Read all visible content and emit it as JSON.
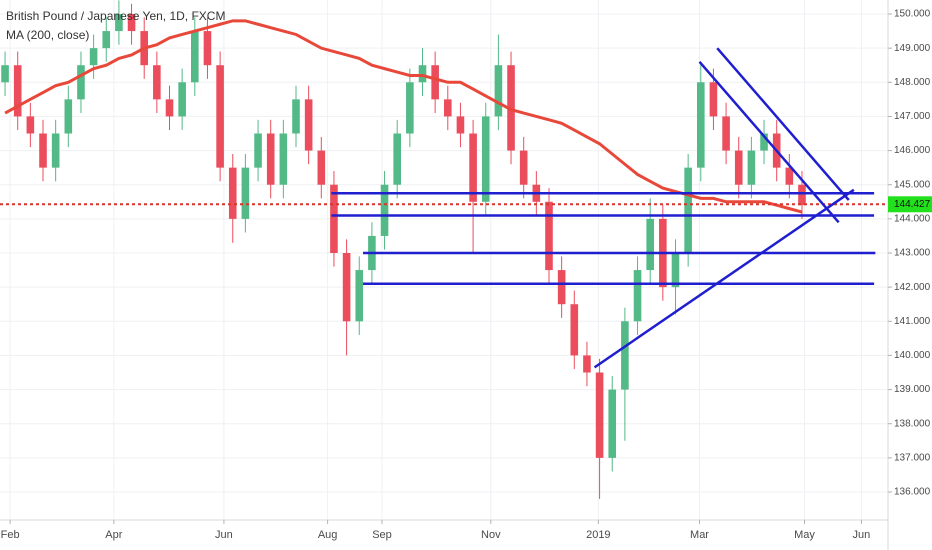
{
  "chart_data": {
    "type": "candlestick",
    "title": "British Pound / Japanese Yen, 1D, FXCM",
    "categories": [
      null,
      null,
      null,
      null,
      null,
      null,
      null,
      null,
      null,
      null,
      null,
      null,
      null,
      null,
      null,
      null,
      null,
      null,
      null,
      null,
      null,
      null,
      null,
      null,
      null,
      null,
      null,
      null,
      null,
      null,
      null,
      null,
      null,
      null,
      null,
      null,
      null,
      null,
      null,
      null,
      null,
      null,
      null,
      null,
      null,
      null,
      null,
      null,
      null,
      null,
      null,
      null,
      null,
      null,
      null,
      null,
      null,
      null,
      null,
      null,
      null,
      null,
      null,
      null
    ],
    "open": [
      148.0,
      148.5,
      147.0,
      146.5,
      145.5,
      146.5,
      147.5,
      148.5,
      149.0,
      149.5,
      150.0,
      149.5,
      148.5,
      147.5,
      147.0,
      148.0,
      149.5,
      148.5,
      145.5,
      144.0,
      145.5,
      146.5,
      145.0,
      146.5,
      147.5,
      146.0,
      145.0,
      143.0,
      141.0,
      142.5,
      143.5,
      145.0,
      146.5,
      148.0,
      148.5,
      147.5,
      147.0,
      146.5,
      144.5,
      147.0,
      148.5,
      146.0,
      145.0,
      144.5,
      142.5,
      141.5,
      140.0,
      139.5,
      137.0,
      139.0,
      141.0,
      142.5,
      144.0,
      142.0,
      143.0,
      145.5,
      148.0,
      147.0,
      146.0,
      145.0,
      146.0,
      146.5,
      145.5,
      145.0
    ],
    "high": [
      148.9,
      148.9,
      147.4,
      146.9,
      146.9,
      147.9,
      148.9,
      149.4,
      149.9,
      150.4,
      150.3,
      149.9,
      148.9,
      147.9,
      148.4,
      149.9,
      149.9,
      148.9,
      145.9,
      145.9,
      146.9,
      146.9,
      146.9,
      147.9,
      147.9,
      146.4,
      145.4,
      143.4,
      142.9,
      143.9,
      145.4,
      146.9,
      148.4,
      149.0,
      148.9,
      147.9,
      147.4,
      146.9,
      147.4,
      149.4,
      148.9,
      146.4,
      145.4,
      144.9,
      142.9,
      141.9,
      140.4,
      139.9,
      139.4,
      141.4,
      142.9,
      144.6,
      144.4,
      143.4,
      145.9,
      148.5,
      148.4,
      147.4,
      146.4,
      146.4,
      146.9,
      146.9,
      145.9,
      145.4
    ],
    "low": [
      147.6,
      146.6,
      146.1,
      145.1,
      145.1,
      146.1,
      147.1,
      148.1,
      148.6,
      149.1,
      149.1,
      148.1,
      147.1,
      146.6,
      146.6,
      147.6,
      148.1,
      145.1,
      143.3,
      143.6,
      145.1,
      144.6,
      144.6,
      146.1,
      145.6,
      144.6,
      142.6,
      140.0,
      140.6,
      142.1,
      143.1,
      144.6,
      146.1,
      147.6,
      147.1,
      146.6,
      146.1,
      143.0,
      144.1,
      146.6,
      145.6,
      144.6,
      144.1,
      142.1,
      141.1,
      139.6,
      139.1,
      135.8,
      136.6,
      137.5,
      140.6,
      142.1,
      141.6,
      141.2,
      142.6,
      145.1,
      146.6,
      145.6,
      144.6,
      144.6,
      145.6,
      145.1,
      144.6,
      144.0
    ],
    "close": [
      148.5,
      147.0,
      146.5,
      145.5,
      146.5,
      147.5,
      148.5,
      149.0,
      149.5,
      150.0,
      149.5,
      148.5,
      147.5,
      147.0,
      148.0,
      149.5,
      148.5,
      145.5,
      144.0,
      145.5,
      146.5,
      145.0,
      146.5,
      147.5,
      146.0,
      145.0,
      143.0,
      141.0,
      142.5,
      143.5,
      145.0,
      146.5,
      148.0,
      148.5,
      147.5,
      147.0,
      146.5,
      144.5,
      147.0,
      148.5,
      146.0,
      145.0,
      144.5,
      142.5,
      141.5,
      140.0,
      139.5,
      137.0,
      139.0,
      141.0,
      142.5,
      144.0,
      142.0,
      143.0,
      145.5,
      148.0,
      147.0,
      146.0,
      145.0,
      146.0,
      146.5,
      145.5,
      145.0,
      144.4
    ],
    "up_color": "#53b987",
    "down_color": "#eb4d5c",
    "series": [
      {
        "name": "MA (200, close)",
        "color": "#e8483a",
        "values": [
          147.1,
          147.3,
          147.5,
          147.7,
          147.9,
          148.0,
          148.2,
          148.4,
          148.5,
          148.7,
          148.8,
          149.0,
          149.1,
          149.3,
          149.4,
          149.5,
          149.6,
          149.7,
          149.8,
          149.8,
          149.7,
          149.6,
          149.5,
          149.4,
          149.2,
          149.0,
          148.9,
          148.8,
          148.7,
          148.5,
          148.4,
          148.3,
          148.2,
          148.2,
          148.1,
          148.0,
          148.0,
          147.8,
          147.6,
          147.4,
          147.2,
          147.1,
          147.0,
          146.9,
          146.8,
          146.6,
          146.4,
          146.2,
          145.9,
          145.6,
          145.3,
          145.1,
          144.9,
          144.8,
          144.7,
          144.6,
          144.6,
          144.5,
          144.5,
          144.5,
          144.5,
          144.4,
          144.3,
          144.2
        ]
      }
    ],
    "lines": [
      {
        "x": [
          25.8,
          68.7
        ],
        "y": [
          144.75,
          144.75
        ]
      },
      {
        "x": [
          25.8,
          68.7
        ],
        "y": [
          144.1,
          144.1
        ]
      },
      {
        "x": [
          28.3,
          68.8
        ],
        "y": [
          143.0,
          143.0
        ]
      },
      {
        "x": [
          28.3,
          68.7
        ],
        "y": [
          142.1,
          142.1
        ]
      },
      {
        "x": [
          46.6,
          67.1
        ],
        "y": [
          139.65,
          144.85
        ]
      },
      {
        "x": [
          54.9,
          65.9
        ],
        "y": [
          148.6,
          143.9
        ]
      },
      {
        "x": [
          56.3,
          66.7
        ],
        "y": [
          149.0,
          144.55
        ]
      }
    ],
    "lines_color": "#1f1fd0",
    "last_price": 144.427,
    "last_price_color": "#22e01c",
    "last_price_line_color": "#d9342b",
    "xlim": [
      -0.4,
      69.8
    ],
    "xticks": [
      {
        "value": 0.4,
        "label": "Feb"
      },
      {
        "value": 8.6,
        "label": "Apr"
      },
      {
        "value": 17.3,
        "label": "Jun"
      },
      {
        "value": 25.5,
        "label": "Aug"
      },
      {
        "value": 29.8,
        "label": "Sep"
      },
      {
        "value": 38.4,
        "label": "Nov"
      },
      {
        "value": 46.9,
        "label": "2019"
      },
      {
        "value": 54.9,
        "label": "Mar"
      },
      {
        "value": 63.2,
        "label": "May"
      },
      {
        "value": 67.7,
        "label": "Jun"
      }
    ],
    "ylim": [
      135.18,
      150.41
    ],
    "yticks": [
      {
        "value": 136,
        "label": "136.000"
      },
      {
        "value": 137,
        "label": "137.000"
      },
      {
        "value": 138,
        "label": "138.000"
      },
      {
        "value": 139,
        "label": "139.000"
      },
      {
        "value": 140,
        "label": "140.000"
      },
      {
        "value": 141,
        "label": "141.000"
      },
      {
        "value": 142,
        "label": "142.000"
      },
      {
        "value": 143,
        "label": "143.000"
      },
      {
        "value": 144,
        "label": "144.000"
      },
      {
        "value": 145,
        "label": "145.000"
      },
      {
        "value": 146,
        "label": "146.000"
      },
      {
        "value": 147,
        "label": "147.000"
      },
      {
        "value": 148,
        "label": "148.000"
      },
      {
        "value": 149,
        "label": "149.000"
      },
      {
        "value": 150,
        "label": "150.000"
      }
    ],
    "grid": true
  }
}
